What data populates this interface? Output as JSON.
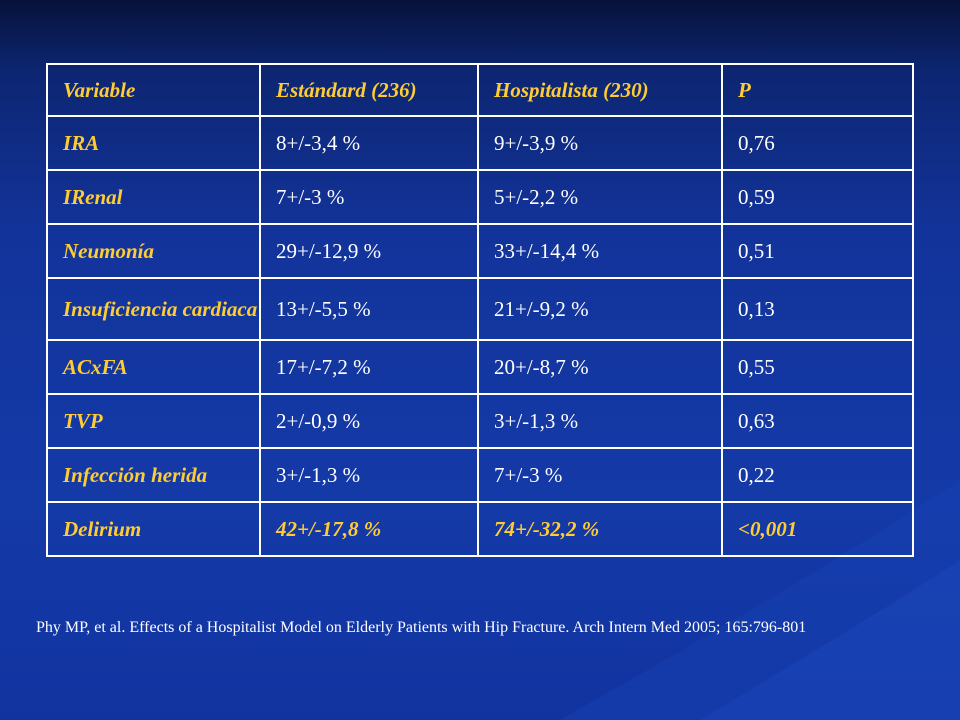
{
  "table": {
    "header": [
      "Variable",
      "Estándard (236)",
      "Hospitalista (230)",
      "P"
    ],
    "rows": [
      [
        "IRA",
        "8+/-3,4 %",
        "9+/-3,9 %",
        "0,76"
      ],
      [
        "IRenal",
        "7+/-3 %",
        "5+/-2,2 %",
        "0,59"
      ],
      [
        "Neumonía",
        "29+/-12,9 %",
        "33+/-14,4 %",
        "0,51"
      ],
      [
        "Insuficiencia cardiaca",
        "13+/-5,5 %",
        "21+/-9,2 %",
        "0,13"
      ],
      [
        "ACxFA",
        "17+/-7,2 %",
        "20+/-8,7 %",
        "0,55"
      ],
      [
        "TVP",
        "2+/-0,9 %",
        "3+/-1,3 %",
        "0,63"
      ],
      [
        "Infección herida",
        "3+/-1,3 %",
        "7+/-3 %",
        "0,22"
      ],
      [
        "Delirium",
        "42+/-17,8 %",
        "74+/-32,2 %",
        "<0,001"
      ]
    ]
  },
  "citation": "Phy MP, et al. Effects of a Hospitalist Model on Elderly Patients with Hip Fracture. Arch Intern Med 2005; 165:796-801",
  "colors": {
    "background_top": "#07123a",
    "background_main": "#143aa8",
    "header_text": "#ffcc33",
    "body_text": "#ffffff",
    "border": "#ffffff"
  }
}
